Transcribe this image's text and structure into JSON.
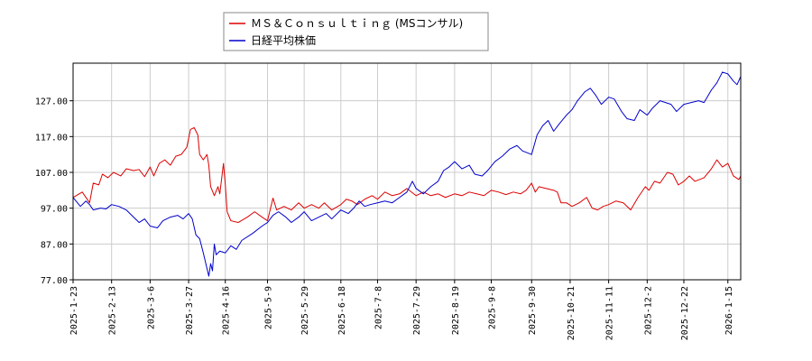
{
  "chart_data": {
    "type": "line",
    "x_type": "date",
    "xlim": [
      "2025-01-23",
      "2026-01-22"
    ],
    "ylim": [
      77,
      137.5
    ],
    "y_ticks": [
      "77.00",
      "87.00",
      "97.00",
      "107.00",
      "117.00",
      "127.00"
    ],
    "x_ticks": [
      "2025-1-23",
      "2025-2-13",
      "2025-3-6",
      "2025-3-27",
      "2025-4-16",
      "2025-5-9",
      "2025-5-29",
      "2025-6-18",
      "2025-7-8",
      "2025-7-29",
      "2025-8-19",
      "2025-9-8",
      "2025-9-30",
      "2025-10-21",
      "2025-11-11",
      "2025-12-2",
      "2025-12-22",
      "2026-1-15"
    ],
    "grid": true,
    "legend_position": "top-center",
    "series": [
      {
        "name": "ＭＳ＆Ｃｏｎｓｕｌｔｉｎｇ (MSコンサル)",
        "color": "#dd0000",
        "points": [
          [
            "2025-01-23",
            100.0
          ],
          [
            "2025-01-28",
            101.5
          ],
          [
            "2025-02-01",
            98.5
          ],
          [
            "2025-02-03",
            104.0
          ],
          [
            "2025-02-06",
            103.5
          ],
          [
            "2025-02-08",
            106.5
          ],
          [
            "2025-02-11",
            105.5
          ],
          [
            "2025-02-14",
            107.0
          ],
          [
            "2025-02-18",
            106.0
          ],
          [
            "2025-02-21",
            108.0
          ],
          [
            "2025-02-25",
            107.5
          ],
          [
            "2025-02-28",
            107.8
          ],
          [
            "2025-03-03",
            105.8
          ],
          [
            "2025-03-06",
            108.5
          ],
          [
            "2025-03-08",
            106.0
          ],
          [
            "2025-03-11",
            109.5
          ],
          [
            "2025-03-14",
            110.5
          ],
          [
            "2025-03-17",
            109.0
          ],
          [
            "2025-03-20",
            111.5
          ],
          [
            "2025-03-23",
            112.0
          ],
          [
            "2025-03-26",
            114.0
          ],
          [
            "2025-03-28",
            119.0
          ],
          [
            "2025-03-30",
            119.5
          ],
          [
            "2025-04-01",
            117.5
          ],
          [
            "2025-04-02",
            112.0
          ],
          [
            "2025-04-04",
            110.5
          ],
          [
            "2025-04-06",
            112.0
          ],
          [
            "2025-04-07",
            109.0
          ],
          [
            "2025-04-08",
            103.0
          ],
          [
            "2025-04-10",
            100.5
          ],
          [
            "2025-04-12",
            103.0
          ],
          [
            "2025-04-13",
            101.0
          ],
          [
            "2025-04-15",
            109.5
          ],
          [
            "2025-04-16",
            103.5
          ],
          [
            "2025-04-17",
            96.0
          ],
          [
            "2025-04-19",
            93.5
          ],
          [
            "2025-04-23",
            93.0
          ],
          [
            "2025-04-28",
            94.5
          ],
          [
            "2025-05-02",
            96.0
          ],
          [
            "2025-05-06",
            94.5
          ],
          [
            "2025-05-09",
            93.5
          ],
          [
            "2025-05-12",
            99.8
          ],
          [
            "2025-05-14",
            96.5
          ],
          [
            "2025-05-18",
            97.5
          ],
          [
            "2025-05-22",
            96.5
          ],
          [
            "2025-05-26",
            98.5
          ],
          [
            "2025-05-29",
            97.0
          ],
          [
            "2025-06-02",
            98.0
          ],
          [
            "2025-06-06",
            97.0
          ],
          [
            "2025-06-09",
            98.5
          ],
          [
            "2025-06-13",
            96.5
          ],
          [
            "2025-06-18",
            98.0
          ],
          [
            "2025-06-21",
            99.5
          ],
          [
            "2025-06-24",
            99.0
          ],
          [
            "2025-06-27",
            98.0
          ],
          [
            "2025-07-01",
            99.5
          ],
          [
            "2025-07-05",
            100.5
          ],
          [
            "2025-07-08",
            99.5
          ],
          [
            "2025-07-12",
            101.5
          ],
          [
            "2025-07-16",
            100.5
          ],
          [
            "2025-07-20",
            101.0
          ],
          [
            "2025-07-24",
            102.5
          ],
          [
            "2025-07-29",
            100.5
          ],
          [
            "2025-08-02",
            101.5
          ],
          [
            "2025-08-06",
            100.5
          ],
          [
            "2025-08-10",
            101.0
          ],
          [
            "2025-08-14",
            100.0
          ],
          [
            "2025-08-19",
            101.0
          ],
          [
            "2025-08-23",
            100.5
          ],
          [
            "2025-08-27",
            101.5
          ],
          [
            "2025-08-31",
            101.0
          ],
          [
            "2025-09-04",
            100.5
          ],
          [
            "2025-09-08",
            102.0
          ],
          [
            "2025-09-12",
            101.5
          ],
          [
            "2025-09-16",
            100.8
          ],
          [
            "2025-09-20",
            101.5
          ],
          [
            "2025-09-24",
            101.0
          ],
          [
            "2025-09-27",
            102.0
          ],
          [
            "2025-09-30",
            104.0
          ],
          [
            "2025-10-02",
            101.5
          ],
          [
            "2025-10-04",
            103.0
          ],
          [
            "2025-10-08",
            102.5
          ],
          [
            "2025-10-12",
            102.0
          ],
          [
            "2025-10-14",
            101.5
          ],
          [
            "2025-10-16",
            98.5
          ],
          [
            "2025-10-19",
            98.5
          ],
          [
            "2025-10-22",
            97.5
          ],
          [
            "2025-10-26",
            98.5
          ],
          [
            "2025-10-30",
            100.0
          ],
          [
            "2025-11-02",
            97.0
          ],
          [
            "2025-11-05",
            96.5
          ],
          [
            "2025-11-08",
            97.5
          ],
          [
            "2025-11-11",
            98.0
          ],
          [
            "2025-11-15",
            99.0
          ],
          [
            "2025-11-19",
            98.5
          ],
          [
            "2025-11-23",
            96.5
          ],
          [
            "2025-11-27",
            100.0
          ],
          [
            "2025-12-01",
            103.0
          ],
          [
            "2025-12-03",
            102.0
          ],
          [
            "2025-12-06",
            104.5
          ],
          [
            "2025-12-09",
            104.0
          ],
          [
            "2025-12-13",
            107.0
          ],
          [
            "2025-12-16",
            106.5
          ],
          [
            "2025-12-19",
            103.5
          ],
          [
            "2025-12-22",
            104.5
          ],
          [
            "2025-12-25",
            106.0
          ],
          [
            "2025-12-28",
            104.5
          ],
          [
            "2026-01-02",
            105.5
          ],
          [
            "2026-01-06",
            108.0
          ],
          [
            "2026-01-09",
            110.5
          ],
          [
            "2026-01-12",
            108.5
          ],
          [
            "2026-01-15",
            109.5
          ],
          [
            "2026-01-18",
            106.0
          ],
          [
            "2026-01-21",
            105.0
          ],
          [
            "2026-01-22",
            106.0
          ]
        ]
      },
      {
        "name": "日経平均株価",
        "color": "#0000cc",
        "points": [
          [
            "2025-01-23",
            100.0
          ],
          [
            "2025-01-27",
            97.5
          ],
          [
            "2025-01-30",
            99.0
          ],
          [
            "2025-02-01",
            98.0
          ],
          [
            "2025-02-03",
            96.5
          ],
          [
            "2025-02-07",
            97.0
          ],
          [
            "2025-02-10",
            96.8
          ],
          [
            "2025-02-13",
            98.0
          ],
          [
            "2025-02-17",
            97.5
          ],
          [
            "2025-02-21",
            96.5
          ],
          [
            "2025-02-25",
            94.5
          ],
          [
            "2025-02-28",
            93.0
          ],
          [
            "2025-03-03",
            94.0
          ],
          [
            "2025-03-06",
            92.0
          ],
          [
            "2025-03-10",
            91.5
          ],
          [
            "2025-03-13",
            93.5
          ],
          [
            "2025-03-17",
            94.5
          ],
          [
            "2025-03-21",
            95.0
          ],
          [
            "2025-03-24",
            94.0
          ],
          [
            "2025-03-27",
            95.5
          ],
          [
            "2025-03-29",
            94.0
          ],
          [
            "2025-03-31",
            89.5
          ],
          [
            "2025-04-02",
            88.5
          ],
          [
            "2025-04-04",
            84.5
          ],
          [
            "2025-04-07",
            78.0
          ],
          [
            "2025-04-08",
            81.5
          ],
          [
            "2025-04-09",
            79.5
          ],
          [
            "2025-04-10",
            87.0
          ],
          [
            "2025-04-11",
            84.0
          ],
          [
            "2025-04-13",
            85.0
          ],
          [
            "2025-04-16",
            84.5
          ],
          [
            "2025-04-19",
            86.5
          ],
          [
            "2025-04-22",
            85.5
          ],
          [
            "2025-04-25",
            88.0
          ],
          [
            "2025-05-01",
            90.0
          ],
          [
            "2025-05-06",
            92.0
          ],
          [
            "2025-05-09",
            93.0
          ],
          [
            "2025-05-12",
            95.0
          ],
          [
            "2025-05-15",
            96.0
          ],
          [
            "2025-05-19",
            94.5
          ],
          [
            "2025-05-22",
            93.0
          ],
          [
            "2025-05-26",
            94.5
          ],
          [
            "2025-05-29",
            96.0
          ],
          [
            "2025-06-02",
            93.5
          ],
          [
            "2025-06-06",
            94.5
          ],
          [
            "2025-06-10",
            95.5
          ],
          [
            "2025-06-13",
            94.0
          ],
          [
            "2025-06-18",
            96.5
          ],
          [
            "2025-06-22",
            95.5
          ],
          [
            "2025-06-25",
            97.0
          ],
          [
            "2025-06-28",
            99.0
          ],
          [
            "2025-07-01",
            97.5
          ],
          [
            "2025-07-04",
            98.0
          ],
          [
            "2025-07-08",
            98.5
          ],
          [
            "2025-07-12",
            99.0
          ],
          [
            "2025-07-16",
            98.5
          ],
          [
            "2025-07-20",
            100.0
          ],
          [
            "2025-07-24",
            101.5
          ],
          [
            "2025-07-27",
            104.5
          ],
          [
            "2025-07-29",
            102.5
          ],
          [
            "2025-08-02",
            101.0
          ],
          [
            "2025-08-06",
            103.0
          ],
          [
            "2025-08-10",
            104.5
          ],
          [
            "2025-08-13",
            107.5
          ],
          [
            "2025-08-16",
            108.5
          ],
          [
            "2025-08-19",
            110.0
          ],
          [
            "2025-08-23",
            108.0
          ],
          [
            "2025-08-27",
            109.0
          ],
          [
            "2025-08-30",
            106.5
          ],
          [
            "2025-09-03",
            106.0
          ],
          [
            "2025-09-06",
            107.5
          ],
          [
            "2025-09-10",
            110.0
          ],
          [
            "2025-09-14",
            111.5
          ],
          [
            "2025-09-18",
            113.5
          ],
          [
            "2025-09-22",
            114.5
          ],
          [
            "2025-09-25",
            113.0
          ],
          [
            "2025-09-30",
            112.0
          ],
          [
            "2025-10-03",
            117.5
          ],
          [
            "2025-10-06",
            120.0
          ],
          [
            "2025-10-09",
            121.5
          ],
          [
            "2025-10-12",
            118.5
          ],
          [
            "2025-10-15",
            120.5
          ],
          [
            "2025-10-19",
            123.0
          ],
          [
            "2025-10-22",
            124.5
          ],
          [
            "2025-10-25",
            127.0
          ],
          [
            "2025-10-29",
            129.5
          ],
          [
            "2025-11-01",
            130.5
          ],
          [
            "2025-11-04",
            128.5
          ],
          [
            "2025-11-07",
            126.0
          ],
          [
            "2025-11-11",
            128.0
          ],
          [
            "2025-11-14",
            127.5
          ],
          [
            "2025-11-18",
            124.0
          ],
          [
            "2025-11-21",
            122.0
          ],
          [
            "2025-11-25",
            121.5
          ],
          [
            "2025-11-28",
            124.5
          ],
          [
            "2025-12-02",
            123.0
          ],
          [
            "2025-12-05",
            125.0
          ],
          [
            "2025-12-09",
            127.0
          ],
          [
            "2025-12-12",
            126.5
          ],
          [
            "2025-12-15",
            126.0
          ],
          [
            "2025-12-18",
            124.0
          ],
          [
            "2025-12-22",
            126.0
          ],
          [
            "2025-12-26",
            126.5
          ],
          [
            "2025-12-30",
            127.0
          ],
          [
            "2026-01-02",
            126.5
          ],
          [
            "2026-01-06",
            130.0
          ],
          [
            "2026-01-09",
            132.0
          ],
          [
            "2026-01-12",
            135.0
          ],
          [
            "2026-01-15",
            134.5
          ],
          [
            "2026-01-18",
            132.5
          ],
          [
            "2026-01-20",
            131.5
          ],
          [
            "2026-01-22",
            133.8
          ]
        ]
      }
    ]
  }
}
